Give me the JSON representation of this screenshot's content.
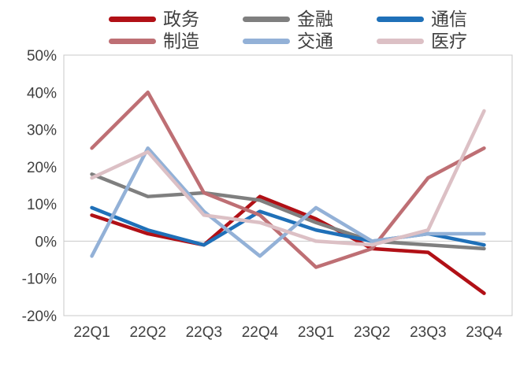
{
  "chart_data": {
    "type": "line",
    "title": "",
    "xlabel": "",
    "ylabel": "",
    "categories": [
      "22Q1",
      "22Q2",
      "22Q3",
      "22Q4",
      "23Q1",
      "23Q2",
      "23Q3",
      "23Q4"
    ],
    "series": [
      {
        "name": "政务",
        "color": "#b11016",
        "values": [
          7,
          2,
          -1,
          12,
          6,
          -2,
          -3,
          -14
        ]
      },
      {
        "name": "金融",
        "color": "#7f7f7f",
        "values": [
          18,
          12,
          13,
          11,
          5,
          0,
          -1,
          -2
        ]
      },
      {
        "name": "通信",
        "color": "#1f70b8",
        "values": [
          9,
          3,
          -1,
          8,
          3,
          0,
          2,
          -1
        ]
      },
      {
        "name": "制造",
        "color": "#be6f74",
        "values": [
          25,
          40,
          13,
          7,
          -7,
          -2,
          17,
          25
        ]
      },
      {
        "name": "交通",
        "color": "#93b1d7",
        "values": [
          -4,
          25,
          8,
          -4,
          9,
          0,
          2,
          2
        ]
      },
      {
        "name": "医疗",
        "color": "#dcc0c5",
        "values": [
          17,
          24,
          7,
          5,
          0,
          -1,
          3,
          35
        ]
      }
    ],
    "ylim": [
      -20,
      50
    ],
    "ytick_step": 10,
    "yticks": [
      "50%",
      "40%",
      "30%",
      "20%",
      "10%",
      "0%",
      "-10%",
      "-20%"
    ],
    "legend_position": "top",
    "grid": "zero-line-only",
    "axis_color": "#c8c8c8",
    "text_color": "#404040"
  }
}
